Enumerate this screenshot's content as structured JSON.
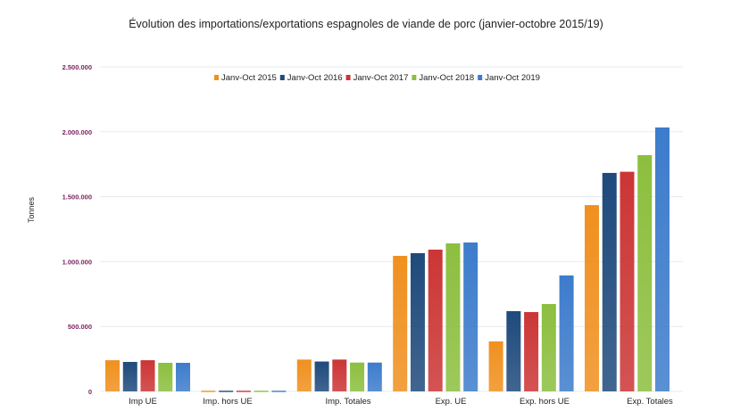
{
  "chart_data": {
    "type": "bar",
    "title": "Évolution des importations/exportations espagnoles de viande de porc (janvier-octobre 2015/19)",
    "xlabel": "",
    "ylabel": "Tonnes",
    "ylim": [
      0,
      2500000
    ],
    "yticks": [
      0,
      500000,
      1000000,
      1500000,
      2000000,
      2500000
    ],
    "ytick_labels": [
      "0",
      "500.000",
      "1.000.000",
      "1.500.000",
      "2.000.000",
      "2.500.000"
    ],
    "grid": true,
    "legend_position": "top-center",
    "categories": [
      "Imp UE",
      "Imp. hors UE",
      "Imp. Totales",
      "Exp. UE",
      "Exp. hors UE",
      "Exp. Totales"
    ],
    "series": [
      {
        "name": "Janv-Oct 2015",
        "color": "#f0901f",
        "values": [
          240000,
          5000,
          245000,
          1044000,
          385000,
          1435000
        ]
      },
      {
        "name": "Janv-Oct 2016",
        "color": "#1f4a7c",
        "values": [
          227000,
          5000,
          230000,
          1065000,
          618000,
          1683000
        ]
      },
      {
        "name": "Janv-Oct 2017",
        "color": "#cc3535",
        "values": [
          240000,
          5000,
          245000,
          1092000,
          611000,
          1692000
        ]
      },
      {
        "name": "Janv-Oct 2018",
        "color": "#8cbf3f",
        "values": [
          220000,
          5000,
          222000,
          1140000,
          673000,
          1820000
        ]
      },
      {
        "name": "Janv-Oct 2019",
        "color": "#3d7ccc",
        "values": [
          220000,
          5000,
          222000,
          1147000,
          893000,
          2033000
        ]
      }
    ]
  }
}
